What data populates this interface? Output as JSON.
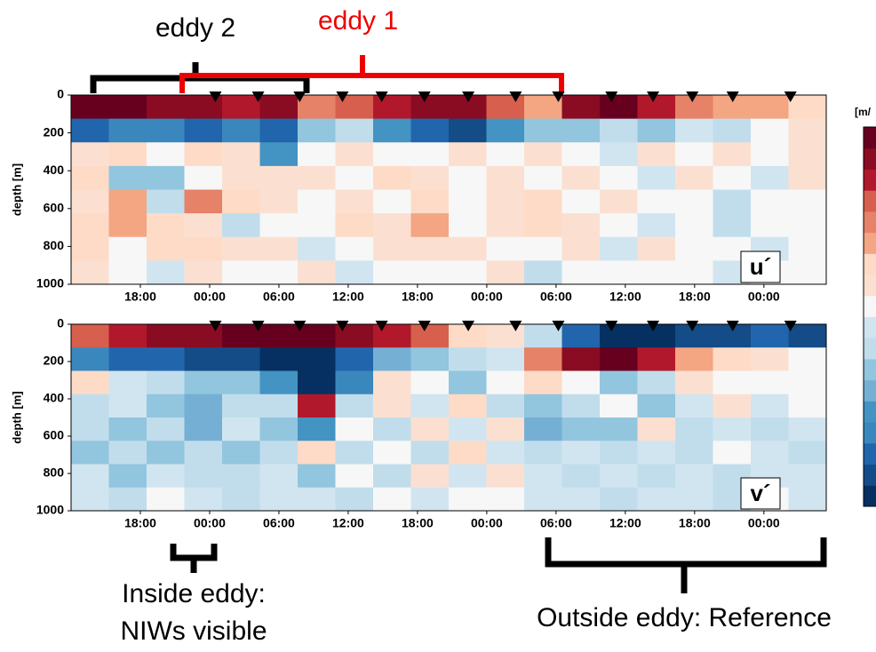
{
  "chart_data": [
    {
      "type": "heatmap",
      "panel_label": "u´",
      "ylabel": "depth [m]",
      "xlim": [
        -6,
        59.4
      ],
      "xticks": [
        {
          "value": 0,
          "label": "18:00"
        },
        {
          "value": 6,
          "label": "00:00"
        },
        {
          "value": 12,
          "label": "06:00"
        },
        {
          "value": 18,
          "label": "12:00"
        },
        {
          "value": 24,
          "label": "18:00"
        },
        {
          "value": 30,
          "label": "00:00"
        },
        {
          "value": 36,
          "label": "06:00"
        },
        {
          "value": 42,
          "label": "12:00"
        },
        {
          "value": 48,
          "label": "18:00"
        },
        {
          "value": 54,
          "label": "00:00"
        }
      ],
      "ylim": [
        0,
        1000
      ],
      "yticks": [
        0,
        200,
        400,
        600,
        800,
        1000
      ],
      "zlim": [
        -1,
        1
      ],
      "markers_x": [
        6.5,
        10.2,
        13.8,
        17.5,
        20.9,
        24.6,
        28.4,
        32.5,
        36.2,
        40.8,
        44.4,
        47.8,
        51.3,
        56.3
      ],
      "z": [
        [
          0.9,
          0.9,
          0.8,
          0.8,
          0.7,
          0.8,
          0.5,
          0.6,
          0.7,
          0.8,
          0.8,
          0.6,
          0.4,
          0.8,
          0.9,
          0.7,
          0.5,
          0.4,
          0.4,
          0.3
        ],
        [
          -0.7,
          -0.6,
          -0.6,
          -0.7,
          -0.6,
          -0.7,
          -0.3,
          -0.2,
          -0.5,
          -0.7,
          -0.8,
          -0.5,
          -0.3,
          -0.3,
          -0.2,
          -0.3,
          -0.1,
          -0.2,
          0.1,
          0.2
        ],
        [
          0.2,
          0.3,
          0.1,
          0.3,
          0.2,
          -0.5,
          0.1,
          0.2,
          0.1,
          0.0,
          0.2,
          0.1,
          0.2,
          0.1,
          -0.1,
          0.2,
          0.1,
          0.2,
          0.1,
          0.2
        ],
        [
          0.3,
          -0.3,
          -0.3,
          0.1,
          0.2,
          0.2,
          0.2,
          0.1,
          0.3,
          0.2,
          0.1,
          0.2,
          0.1,
          0.2,
          0.1,
          -0.1,
          0.2,
          0.1,
          -0.1,
          0.2
        ],
        [
          0.2,
          0.4,
          -0.2,
          0.5,
          0.3,
          0.2,
          0.1,
          0.2,
          0.1,
          0.3,
          0.1,
          0.2,
          0.3,
          0.1,
          0.2,
          0.1,
          0.1,
          -0.2,
          0.1,
          0.0
        ],
        [
          0.3,
          0.4,
          0.3,
          0.2,
          -0.2,
          0.1,
          0.1,
          0.3,
          0.2,
          0.4,
          0.1,
          0.2,
          0.3,
          0.2,
          0.1,
          -0.1,
          0.1,
          -0.2,
          0.1,
          0.1
        ],
        [
          0.3,
          0.1,
          0.3,
          0.3,
          0.2,
          0.2,
          -0.1,
          0.1,
          0.2,
          0.2,
          0.2,
          0.1,
          0.1,
          0.2,
          -0.1,
          0.2,
          0.1,
          0.1,
          -0.1,
          0.1
        ],
        [
          0.2,
          0.1,
          -0.1,
          0.2,
          0.1,
          0.1,
          0.2,
          -0.1,
          0.1,
          0.0,
          0.1,
          0.2,
          -0.2,
          0.1,
          0.1,
          0.0,
          0.1,
          -0.1,
          0.0,
          0.0
        ]
      ]
    },
    {
      "type": "heatmap",
      "panel_label": "v´",
      "ylabel": "depth [m]",
      "xlim": [
        -6,
        59.4
      ],
      "xticks": [
        {
          "value": 0,
          "label": "18:00"
        },
        {
          "value": 6,
          "label": "00:00"
        },
        {
          "value": 12,
          "label": "06:00"
        },
        {
          "value": 18,
          "label": "12:00"
        },
        {
          "value": 24,
          "label": "18:00"
        },
        {
          "value": 30,
          "label": "00:00"
        },
        {
          "value": 36,
          "label": "06:00"
        },
        {
          "value": 42,
          "label": "12:00"
        },
        {
          "value": 48,
          "label": "18:00"
        },
        {
          "value": 54,
          "label": "00:00"
        }
      ],
      "ylim": [
        0,
        1000
      ],
      "yticks": [
        0,
        200,
        400,
        600,
        800,
        1000
      ],
      "zlim": [
        -1,
        1
      ],
      "markers_x": [
        6.5,
        10.2,
        13.8,
        17.5,
        20.9,
        24.6,
        28.4,
        32.5,
        36.2,
        40.8,
        44.4,
        47.8,
        51.3,
        56.3
      ],
      "z": [
        [
          0.6,
          0.7,
          0.8,
          0.8,
          0.9,
          0.9,
          0.9,
          0.8,
          0.7,
          0.6,
          0.3,
          0.2,
          -0.2,
          -0.7,
          -0.9,
          -0.9,
          -0.8,
          -0.8,
          -0.7,
          -0.8
        ],
        [
          -0.6,
          -0.7,
          -0.7,
          -0.8,
          -0.8,
          -0.9,
          -0.9,
          -0.7,
          -0.4,
          -0.3,
          -0.2,
          -0.1,
          0.5,
          0.8,
          0.9,
          0.7,
          0.4,
          0.3,
          0.2,
          0.1
        ],
        [
          0.3,
          -0.1,
          -0.2,
          -0.3,
          -0.3,
          -0.5,
          -0.9,
          -0.6,
          0.2,
          0.1,
          -0.3,
          0.1,
          0.3,
          0.1,
          -0.3,
          -0.2,
          0.2,
          0.1,
          0.1,
          0.0
        ],
        [
          -0.2,
          -0.1,
          -0.3,
          -0.4,
          -0.2,
          -0.2,
          0.7,
          -0.2,
          0.2,
          -0.1,
          0.3,
          -0.2,
          -0.3,
          -0.2,
          0.1,
          -0.3,
          -0.1,
          0.2,
          -0.1,
          0.1
        ],
        [
          -0.2,
          -0.3,
          -0.2,
          -0.4,
          -0.1,
          -0.3,
          -0.5,
          0.1,
          -0.2,
          0.2,
          -0.1,
          0.2,
          -0.4,
          -0.3,
          -0.3,
          0.2,
          -0.2,
          -0.1,
          -0.2,
          -0.1
        ],
        [
          -0.3,
          -0.2,
          -0.3,
          -0.2,
          -0.3,
          -0.2,
          0.3,
          -0.2,
          0.1,
          -0.2,
          0.3,
          -0.1,
          -0.2,
          -0.1,
          -0.2,
          -0.1,
          -0.2,
          0.1,
          -0.1,
          -0.2
        ],
        [
          -0.1,
          -0.3,
          -0.1,
          -0.2,
          -0.2,
          -0.1,
          -0.3,
          0.1,
          -0.2,
          0.2,
          -0.1,
          0.2,
          -0.1,
          -0.2,
          -0.1,
          -0.2,
          -0.1,
          -0.2,
          -0.1,
          -0.1
        ],
        [
          -0.1,
          -0.2,
          0.0,
          -0.1,
          -0.2,
          -0.1,
          -0.1,
          -0.2,
          0.1,
          -0.1,
          0.0,
          0.1,
          -0.1,
          -0.1,
          -0.2,
          -0.1,
          -0.1,
          -0.2,
          0.0,
          -0.1
        ]
      ]
    }
  ],
  "colorbar": {
    "label": "[m/",
    "colormap": [
      "#053061",
      "#134c87",
      "#2166ac",
      "#3a87bd",
      "#4393c3",
      "#75b0d4",
      "#92c5de",
      "#c1ddec",
      "#d1e5f0",
      "#f7f7f7",
      "#fbe0d1",
      "#fddbc7",
      "#f4a582",
      "#e58267",
      "#d6604d",
      "#b2182b",
      "#8a0c22",
      "#67001f"
    ]
  },
  "annotations": {
    "eddy2": "eddy 2",
    "eddy1": "eddy 1",
    "inside_1": "Inside eddy:",
    "inside_2": "NIWs visible",
    "outside": "Outside eddy: Reference"
  }
}
